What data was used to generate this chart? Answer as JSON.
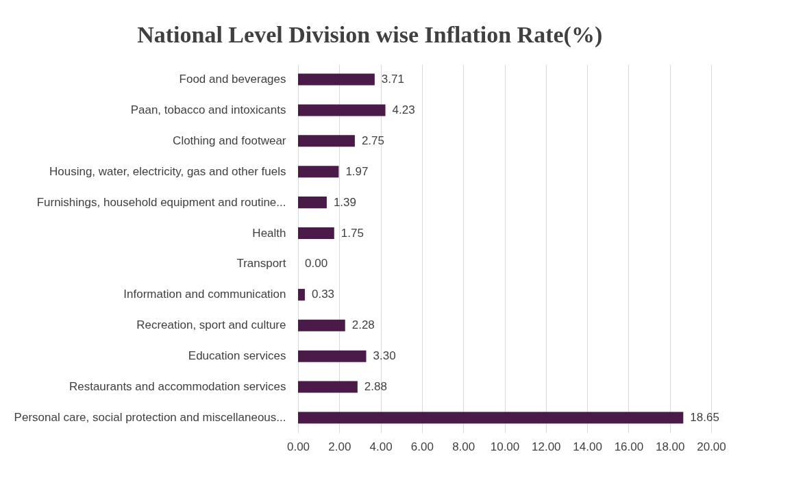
{
  "chart_data": {
    "type": "bar",
    "orientation": "horizontal",
    "title": "National Level Division wise Inflation Rate(%)",
    "categories": [
      "Food and beverages",
      "Paan, tobacco and intoxicants",
      "Clothing and footwear",
      "Housing, water, electricity, gas and other fuels",
      "Furnishings, household equipment and routine...",
      "Health",
      "Transport",
      "Information and communication",
      "Recreation, sport and culture",
      "Education services",
      "Restaurants and accommodation services",
      "Personal care, social protection and miscellaneous..."
    ],
    "values": [
      3.71,
      4.23,
      2.75,
      1.97,
      1.39,
      1.75,
      0.0,
      0.33,
      2.28,
      3.3,
      2.88,
      18.65
    ],
    "value_labels": [
      "3.71",
      "4.23",
      "2.75",
      "1.97",
      "1.39",
      "1.75",
      "0.00",
      "0.33",
      "2.28",
      "3.30",
      "2.88",
      "18.65"
    ],
    "color": "#4a1a48",
    "xlim": [
      0,
      20
    ],
    "xticks": [
      {
        "value": 0,
        "label": "0.00"
      },
      {
        "value": 2,
        "label": "2.00"
      },
      {
        "value": 4,
        "label": "4.00"
      },
      {
        "value": 6,
        "label": "6.00"
      },
      {
        "value": 8,
        "label": "8.00"
      },
      {
        "value": 10,
        "label": "10.00"
      },
      {
        "value": 12,
        "label": "12.00"
      },
      {
        "value": 14,
        "label": "14.00"
      },
      {
        "value": 16,
        "label": "16.00"
      },
      {
        "value": 18,
        "label": "18.00"
      },
      {
        "value": 20,
        "label": "20.00"
      }
    ],
    "grid": "x"
  }
}
